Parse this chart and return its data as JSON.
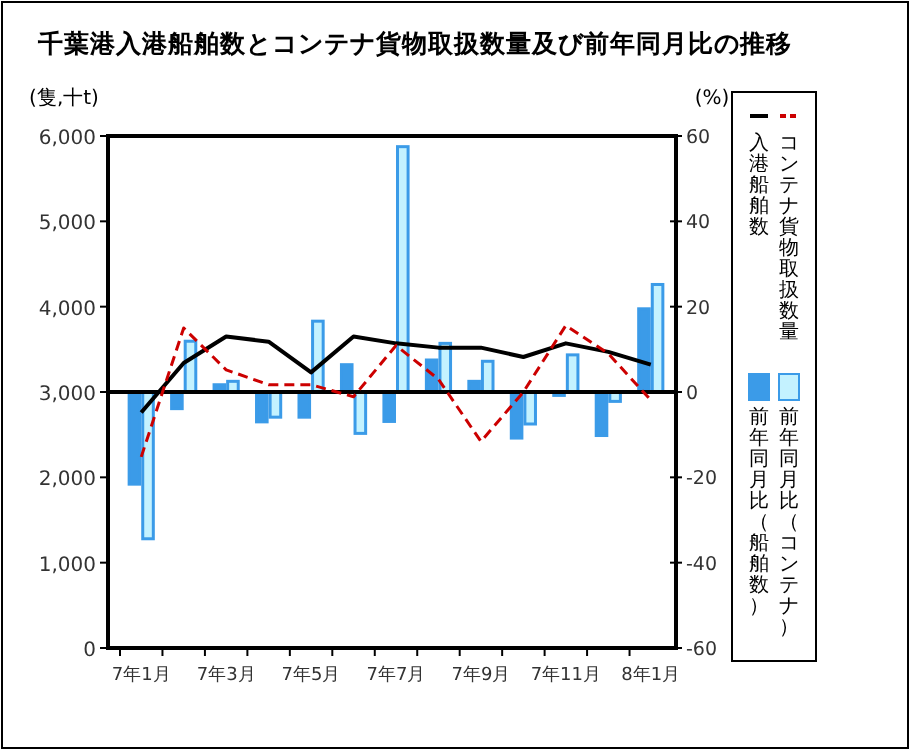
{
  "chart_data": {
    "type": "bar",
    "title": "千葉港入港船舶数とコンテナ貨物取扱数量及び前年同月比の推移",
    "ylabel": "(隻,十t)",
    "y2label": "(%)",
    "categories": [
      "7年1月",
      null,
      "7年3月",
      null,
      "7年5月",
      null,
      "7年7月",
      null,
      "7年9月",
      null,
      "7年11月",
      null,
      "8年1月"
    ],
    "series": [
      {
        "name": "入港船舶数",
        "type": "line",
        "color": "#000000",
        "line_style": "solid",
        "values": [
          2760,
          3340,
          3650,
          3590,
          3230,
          3650,
          3570,
          3520,
          3520,
          3410,
          3570,
          3470,
          3320
        ]
      },
      {
        "name": "コンテナ貨物取扱数量",
        "type": "line",
        "axis": "y2",
        "color": "#cc0000",
        "line_style": "dashed",
        "values": [
          -15.2,
          15,
          5.2,
          1.7,
          1.7,
          -1.1,
          10.9,
          3,
          -11.6,
          0,
          15.6,
          9,
          -1.9
        ]
      },
      {
        "name": "前年同月比（船舶数）",
        "axis": "y2",
        "color": "#3b9be8",
        "values": [
          -21.6,
          -3.9,
          1.7,
          -7,
          -5.9,
          6.4,
          -6.9,
          7.5,
          2.5,
          -10.8,
          -0.8,
          -10.2,
          19.5
        ]
      },
      {
        "name": "前年同月比（コンテナ）",
        "axis": "y2",
        "color": "#c4f2ff",
        "values": [
          -34.4,
          11.9,
          2.5,
          -5.9,
          16.6,
          -9.7,
          57.5,
          11.4,
          7.2,
          -7.5,
          8.7,
          -2.2,
          25.2
        ]
      }
    ],
    "ylim": [
      0,
      6000
    ],
    "yticks": [
      {
        "value": 0,
        "label": "0"
      },
      {
        "value": 1000,
        "label": "1,000"
      },
      {
        "value": 2000,
        "label": "2,000"
      },
      {
        "value": 3000,
        "label": "3,000"
      },
      {
        "value": 4000,
        "label": "4,000"
      },
      {
        "value": 5000,
        "label": "5,000"
      },
      {
        "value": 6000,
        "label": "6,000"
      }
    ],
    "y2lim": [
      -60,
      60
    ],
    "y2ticks": [
      -60,
      -40,
      -20,
      0,
      20,
      40,
      60
    ],
    "ref_lines": [
      {
        "axis": "y2",
        "value": 0,
        "color": "#000000"
      }
    ],
    "grid": false,
    "legend": "right"
  }
}
